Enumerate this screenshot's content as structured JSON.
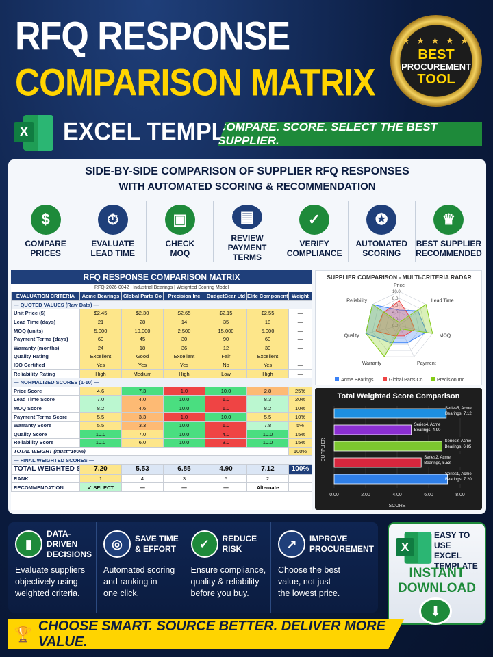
{
  "header": {
    "title_line1": "RFQ RESPONSE",
    "title_line2": "COMPARISON MATRIX",
    "badge": {
      "line1": "BEST",
      "line2": "PROCUREMENT",
      "line3": "TOOL",
      "stars": "★ ★ ★ ★ ★"
    },
    "excel_logo_letter": "X",
    "excel_template": "EXCEL TEMPLATE",
    "ribbon": "COMPARE. SCORE. SELECT THE BEST SUPPLIER."
  },
  "panel": {
    "subtitle1": "SIDE-BY-SIDE COMPARISON OF SUPPLIER RFQ RESPONSES",
    "subtitle2": "WITH AUTOMATED SCORING & RECOMMENDATION",
    "features": [
      {
        "icon": "dollar-icon",
        "glyph": "$",
        "label": "COMPARE\nPRICES",
        "color": "#1e8a3a"
      },
      {
        "icon": "stopwatch-icon",
        "glyph": "⏱",
        "label": "EVALUATE\nLEAD TIME",
        "color": "#1f3f7a"
      },
      {
        "icon": "box-icon",
        "glyph": "▣",
        "label": "CHECK\nMOQ",
        "color": "#1e8a3a"
      },
      {
        "icon": "document-icon",
        "glyph": "▤",
        "label": "REVIEW\nPAYMENT TERMS",
        "color": "#1f3f7a"
      },
      {
        "icon": "shield-check-icon",
        "glyph": "✓",
        "label": "VERIFY\nCOMPLIANCE",
        "color": "#1e8a3a"
      },
      {
        "icon": "award-icon",
        "glyph": "✪",
        "label": "AUTOMATED\nSCORING",
        "color": "#1f3f7a"
      },
      {
        "icon": "trophy-icon",
        "glyph": "♛",
        "label": "BEST SUPPLIER\nRECOMMENDED",
        "color": "#1e8a3a"
      }
    ]
  },
  "matrix": {
    "title": "RFQ RESPONSE COMPARISON MATRIX",
    "subtitle": "RFQ-2026-0042 | Industrial Bearings | Weighted Scoring Model",
    "headers": [
      "EVALUATION CRITERIA",
      "Acme Bearings",
      "Global Parts Co",
      "Precision Inc",
      "BudgetBear Ltd",
      "Elite Components",
      "Weight"
    ],
    "section_raw": "— QUOTED VALUES (Raw Data) —",
    "raw_rows": [
      {
        "label": "Unit Price ($)",
        "values": [
          "$2.45",
          "$2.30",
          "$2.65",
          "$2.15",
          "$2.55"
        ],
        "weight": "—"
      },
      {
        "label": "Lead Time (days)",
        "values": [
          "21",
          "28",
          "14",
          "35",
          "18"
        ],
        "weight": "—"
      },
      {
        "label": "MOQ (units)",
        "values": [
          "5,000",
          "10,000",
          "2,500",
          "15,000",
          "5,000"
        ],
        "weight": "—"
      },
      {
        "label": "Payment Terms (days)",
        "values": [
          "60",
          "45",
          "30",
          "90",
          "60"
        ],
        "weight": "—"
      },
      {
        "label": "Warranty (months)",
        "values": [
          "24",
          "18",
          "36",
          "12",
          "30"
        ],
        "weight": "—"
      },
      {
        "label": "Quality Rating",
        "values": [
          "Excellent",
          "Good",
          "Excellent",
          "Fair",
          "Excellent"
        ],
        "weight": "—"
      },
      {
        "label": "ISO Certified",
        "values": [
          "Yes",
          "Yes",
          "Yes",
          "No",
          "Yes"
        ],
        "weight": "—"
      },
      {
        "label": "Reliability Rating",
        "values": [
          "High",
          "Medium",
          "High",
          "Low",
          "High"
        ],
        "weight": "—"
      }
    ],
    "section_norm": "— NORMALIZED SCORES (1-10) —",
    "norm_rows": [
      {
        "label": "Price Score",
        "values": [
          "4.6",
          "7.3",
          "1.0",
          "10.0",
          "2.8"
        ],
        "colors": [
          "yel",
          "grn",
          "red",
          "grn",
          "org"
        ],
        "weight": "25%"
      },
      {
        "label": "Lead Time Score",
        "values": [
          "7.0",
          "4.0",
          "10.0",
          "1.0",
          "8.3"
        ],
        "colors": [
          "lgr",
          "org",
          "grn",
          "red",
          "lgr"
        ],
        "weight": "20%"
      },
      {
        "label": "MOQ Score",
        "values": [
          "8.2",
          "4.6",
          "10.0",
          "1.0",
          "8.2"
        ],
        "colors": [
          "lgr",
          "org",
          "grn",
          "red",
          "lgr"
        ],
        "weight": "10%"
      },
      {
        "label": "Payment Terms Score",
        "values": [
          "5.5",
          "3.3",
          "1.0",
          "10.0",
          "5.5"
        ],
        "colors": [
          "yel",
          "org",
          "red",
          "grn",
          "yel"
        ],
        "weight": "10%"
      },
      {
        "label": "Warranty Score",
        "values": [
          "5.5",
          "3.3",
          "10.0",
          "1.0",
          "7.8"
        ],
        "colors": [
          "yel",
          "org",
          "grn",
          "red",
          "lgr"
        ],
        "weight": "5%"
      },
      {
        "label": "Quality Score",
        "values": [
          "10.0",
          "7.0",
          "10.0",
          "4.0",
          "10.0"
        ],
        "colors": [
          "grn",
          "yel",
          "grn",
          "red",
          "grn"
        ],
        "weight": "15%"
      },
      {
        "label": "Reliability Score",
        "values": [
          "10.0",
          "6.0",
          "10.0",
          "3.0",
          "10.0"
        ],
        "colors": [
          "grn",
          "yel",
          "grn",
          "red",
          "grn"
        ],
        "weight": "15%"
      }
    ],
    "total_weight_label": "TOTAL WEIGHT (must=100%)",
    "total_weight_value": "100%",
    "section_final": "— FINAL WEIGHTED SCORES —",
    "total_label": "TOTAL WEIGHTED SCORE",
    "totals": [
      "7.20",
      "5.53",
      "6.85",
      "4.90",
      "7.12"
    ],
    "totals_weight": "100%",
    "rank_label": "RANK",
    "ranks": [
      "1",
      "4",
      "3",
      "5",
      "2"
    ],
    "rec_label": "RECOMMENDATION",
    "recs": [
      "✓ SELECT",
      "—",
      "—",
      "—",
      "Alternate"
    ]
  },
  "chart_data": [
    {
      "type": "radar",
      "title": "SUPPLIER COMPARISON - MULTI-CRITERIA RADAR",
      "axes": [
        "Price",
        "Lead Time",
        "MOQ",
        "Payment",
        "Warranty",
        "Quality",
        "Reliability"
      ],
      "ticks": [
        "10.0",
        "8.0",
        "6.0",
        "4.0",
        "2.0",
        "0.0"
      ],
      "range": [
        0,
        10
      ],
      "series": [
        {
          "name": "Acme Bearings",
          "values": [
            4.6,
            7.0,
            8.2,
            5.5,
            5.5,
            10.0,
            10.0
          ],
          "color": "#3b82f6"
        },
        {
          "name": "Global Parts Co",
          "values": [
            7.3,
            4.0,
            4.6,
            3.3,
            3.3,
            7.0,
            6.0
          ],
          "color": "#ef4444"
        },
        {
          "name": "Precision Inc",
          "values": [
            1.0,
            10.0,
            10.0,
            1.0,
            10.0,
            10.0,
            10.0
          ],
          "color": "#84cc16"
        }
      ],
      "legend": "bottom"
    },
    {
      "type": "bar",
      "orientation": "horizontal",
      "title": "Total Weighted Score Comparison",
      "xlabel": "SCORE",
      "ylabel": "SUPPLIER",
      "xlim": [
        0,
        8
      ],
      "xticks": [
        "0.00",
        "2.00",
        "4.00",
        "6.00",
        "8.00"
      ],
      "bars": [
        {
          "label": "Series5, Acme Bearings, 7.12",
          "value": 7.12,
          "color": "#1d8fe1"
        },
        {
          "label": "Series4, Acme Bearings, 4.90",
          "value": 4.9,
          "color": "#8b2fd1"
        },
        {
          "label": "Series3, Acme Bearings, 6.85",
          "value": 6.85,
          "color": "#7cc62f"
        },
        {
          "label": "Series2, Acme Bearings, 5.53",
          "value": 5.53,
          "color": "#d7263d"
        },
        {
          "label": "Series1, Acme Bearings, 7.20",
          "value": 7.2,
          "color": "#2f7fe8"
        }
      ]
    }
  ],
  "benefits": [
    {
      "icon": "bar-chart-icon",
      "glyph": "▮",
      "title": "DATA-DRIVEN\nDECISIONS",
      "desc": "Evaluate suppliers\nobjectively using\nweighted criteria.",
      "color": "#1e8a3a"
    },
    {
      "icon": "target-icon",
      "glyph": "◎",
      "title": "SAVE TIME\n& EFFORT",
      "desc": "Automated scoring\nand ranking in\none click.",
      "color": "#1f3f7a"
    },
    {
      "icon": "shield-icon",
      "glyph": "✓",
      "title": "REDUCE RISK",
      "desc": "Ensure compliance,\nquality & reliability\nbefore you buy.",
      "color": "#1e8a3a"
    },
    {
      "icon": "growth-chart-icon",
      "glyph": "↗",
      "title": "IMPROVE\nPROCUREMENT",
      "desc": "Choose the best\nvalue, not just\nthe lowest price.",
      "color": "#1f3f7a"
    }
  ],
  "download": {
    "easy": "EASY TO USE\nEXCEL TEMPLATE",
    "instant": "INSTANT\nDOWNLOAD",
    "logo_letter": "X"
  },
  "footer": {
    "text": "CHOOSE SMART. SOURCE BETTER. DELIVER MORE VALUE."
  }
}
